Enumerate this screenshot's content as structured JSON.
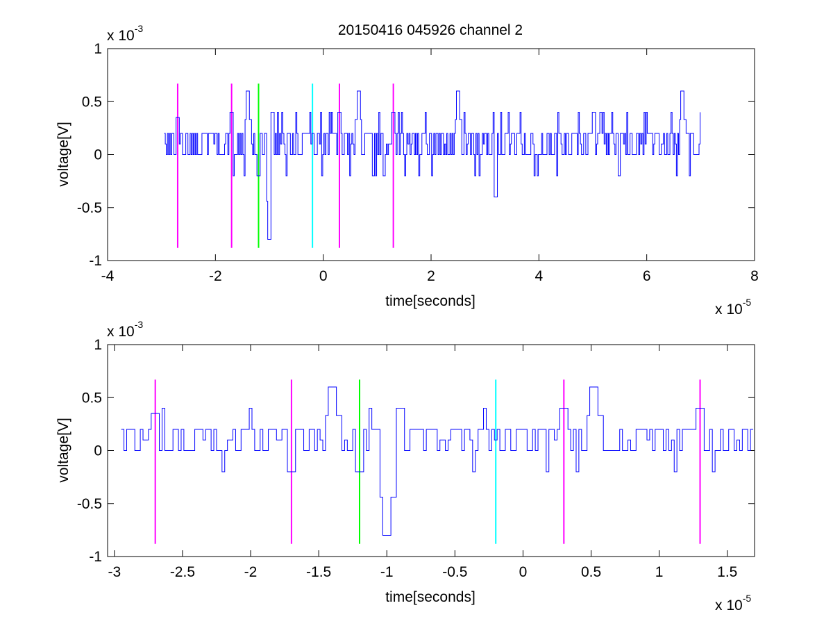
{
  "figure": {
    "title": "20150416 045926 channel 2"
  },
  "chart_data": [
    {
      "type": "line",
      "title": "20150416 045926 channel 2",
      "xlabel": "time[seconds]",
      "ylabel": "voltage[V]",
      "x_exponent_label": "x 10",
      "x_exponent": "-5",
      "y_exponent_label": "x 10",
      "y_exponent": "-3",
      "x_scale": 1e-05,
      "y_scale": 0.001,
      "xlim": [
        -4,
        8
      ],
      "ylim": [
        -1,
        1
      ],
      "xticks": [
        -4,
        -2,
        0,
        2,
        4,
        6,
        8
      ],
      "xtick_labels": [
        "-4",
        "-2",
        "0",
        "2",
        "4",
        "6",
        "8"
      ],
      "yticks": [
        -1,
        -0.5,
        0,
        0.5,
        1
      ],
      "ytick_labels": [
        "-1",
        "-0.5",
        "0",
        "0.5",
        "1"
      ],
      "grid": false,
      "series": [
        {
          "color": "#0000ff",
          "x_range": [
            -2.95,
            7.0
          ],
          "sample_step": 0.02,
          "baseline": [
            0.0,
            0.2
          ],
          "events": [
            {
              "x": -2.7,
              "y": 0.35
            },
            {
              "x": -1.7,
              "y": 0.4
            },
            {
              "x": -1.4,
              "y": 0.6
            },
            {
              "x": -1.2,
              "y": -0.2
            },
            {
              "x": -1.0,
              "y": -0.8
            },
            {
              "x": -0.95,
              "y": 0.4
            },
            {
              "x": 0.3,
              "y": 0.4
            },
            {
              "x": 0.65,
              "y": 0.6
            },
            {
              "x": 1.3,
              "y": 0.4
            },
            {
              "x": 2.5,
              "y": 0.6
            },
            {
              "x": 3.2,
              "y": -0.4
            },
            {
              "x": 5.0,
              "y": 0.4
            },
            {
              "x": 6.65,
              "y": 0.6
            }
          ]
        }
      ],
      "markers": [
        {
          "x": -2.7,
          "color": "#ff00ff",
          "y_range": [
            -0.88,
            0.67
          ]
        },
        {
          "x": -1.7,
          "color": "#ff00ff",
          "y_range": [
            -0.88,
            0.67
          ]
        },
        {
          "x": -1.2,
          "color": "#00ff00",
          "y_range": [
            -0.88,
            0.67
          ]
        },
        {
          "x": -0.2,
          "color": "#00ffff",
          "y_range": [
            -0.88,
            0.67
          ]
        },
        {
          "x": 0.3,
          "color": "#ff00ff",
          "y_range": [
            -0.88,
            0.67
          ]
        },
        {
          "x": 1.3,
          "color": "#ff00ff",
          "y_range": [
            -0.88,
            0.67
          ]
        }
      ]
    },
    {
      "type": "line",
      "title": "",
      "xlabel": "time[seconds]",
      "ylabel": "voltage[V]",
      "x_exponent_label": "x 10",
      "x_exponent": "-5",
      "y_exponent_label": "x 10",
      "y_exponent": "-3",
      "x_scale": 1e-05,
      "y_scale": 0.001,
      "xlim": [
        -3.05,
        1.7
      ],
      "ylim": [
        -1,
        1
      ],
      "xticks": [
        -3,
        -2.5,
        -2,
        -1.5,
        -1,
        -0.5,
        0,
        0.5,
        1,
        1.5
      ],
      "xtick_labels": [
        "-3",
        "-2.5",
        "-2",
        "-1.5",
        "-1",
        "-0.5",
        "0",
        "0.5",
        "1",
        "1.5"
      ],
      "yticks": [
        -1,
        -0.5,
        0,
        0.5,
        1
      ],
      "ytick_labels": [
        "-1",
        "-0.5",
        "0",
        "0.5",
        "1"
      ],
      "grid": false,
      "series": [
        {
          "color": "#0000ff",
          "x_range": [
            -2.95,
            1.7
          ],
          "sample_step": 0.02,
          "baseline": [
            0.0,
            0.2
          ],
          "events": [
            {
              "x": -2.7,
              "y": 0.35
            },
            {
              "x": -1.7,
              "y": -0.2
            },
            {
              "x": -1.4,
              "y": 0.6
            },
            {
              "x": -1.2,
              "y": -0.2
            },
            {
              "x": -1.0,
              "y": -0.8
            },
            {
              "x": -0.9,
              "y": 0.4
            },
            {
              "x": 0.3,
              "y": 0.4
            },
            {
              "x": 0.52,
              "y": 0.6
            },
            {
              "x": 1.3,
              "y": 0.4
            }
          ]
        }
      ],
      "markers": [
        {
          "x": -2.7,
          "color": "#ff00ff",
          "y_range": [
            -0.88,
            0.67
          ]
        },
        {
          "x": -1.7,
          "color": "#ff00ff",
          "y_range": [
            -0.88,
            0.67
          ]
        },
        {
          "x": -1.2,
          "color": "#00ff00",
          "y_range": [
            -0.88,
            0.67
          ]
        },
        {
          "x": -0.2,
          "color": "#00ffff",
          "y_range": [
            -0.88,
            0.67
          ]
        },
        {
          "x": 0.3,
          "color": "#ff00ff",
          "y_range": [
            -0.88,
            0.67
          ]
        },
        {
          "x": 1.3,
          "color": "#ff00ff",
          "y_range": [
            -0.88,
            0.67
          ]
        }
      ]
    }
  ]
}
